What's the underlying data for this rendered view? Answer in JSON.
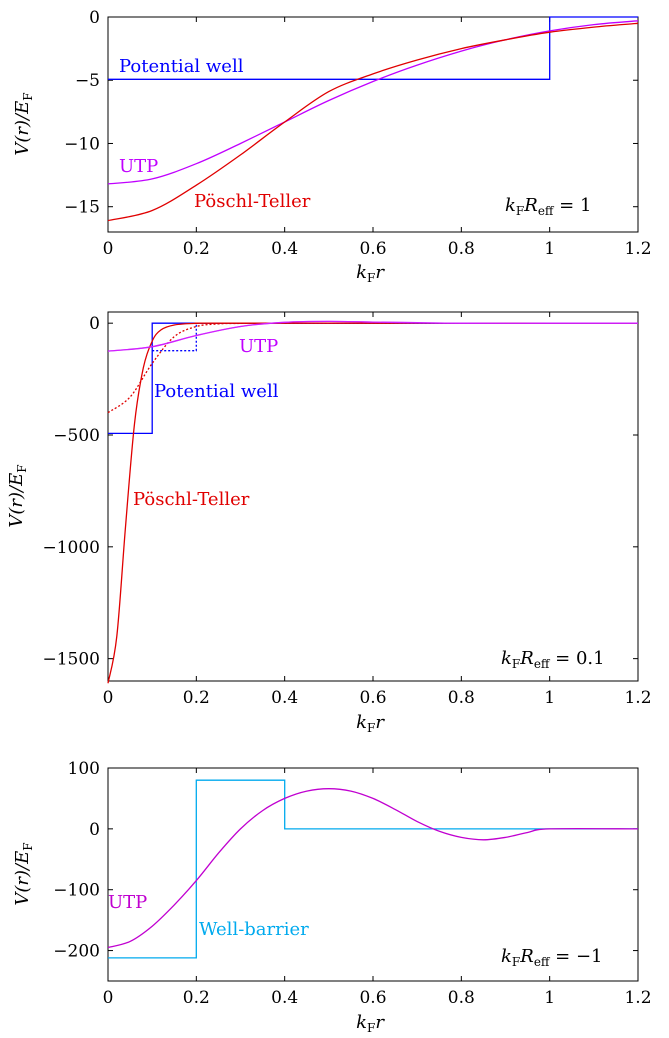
{
  "chart_data": [
    {
      "type": "line",
      "xlabel": "k_F r",
      "ylabel": "V(r)/E_F",
      "xlim": [
        0,
        1.2
      ],
      "ylim": [
        -17,
        0
      ],
      "xticks": [
        0,
        0.2,
        0.4,
        0.6,
        0.8,
        1,
        1.2
      ],
      "xtick_labels": [
        "0",
        "0.2",
        "0.4",
        "0.6",
        "0.8",
        "1",
        "1.2"
      ],
      "yticks": [
        0,
        -5,
        -10,
        -15
      ],
      "ytick_labels": [
        "0",
        "−5",
        "−10",
        "−15"
      ],
      "annotation": "k_F R_eff = 1",
      "series": [
        {
          "name": "Potential well",
          "color": "#0000ff",
          "x": [
            0,
            1,
            1,
            1.2
          ],
          "y": [
            -4.93,
            -4.93,
            0,
            0
          ],
          "step": true
        },
        {
          "name": "UTP",
          "color": "#c000ff",
          "x": [
            0,
            0.1,
            0.2,
            0.3,
            0.4,
            0.5,
            0.6,
            0.7,
            0.8,
            0.9,
            1.0,
            1.1,
            1.2
          ],
          "y": [
            -13.2,
            -12.8,
            -11.6,
            -10.0,
            -8.3,
            -6.6,
            -5.1,
            -3.8,
            -2.7,
            -1.8,
            -1.1,
            -0.6,
            -0.3
          ]
        },
        {
          "name": "Pöschl-Teller",
          "color": "#e00000",
          "x": [
            0,
            0.1,
            0.2,
            0.3,
            0.4,
            0.5,
            0.6,
            0.7,
            0.8,
            0.9,
            1.0,
            1.1,
            1.2
          ],
          "y": [
            -16.1,
            -15.3,
            -13.3,
            -10.9,
            -8.3,
            -5.9,
            -4.5,
            -3.4,
            -2.5,
            -1.8,
            -1.2,
            -0.8,
            -0.5
          ]
        }
      ],
      "labels": {
        "well": "Potential well",
        "utp": "UTP",
        "pt": "Pöschl-Teller"
      }
    },
    {
      "type": "line",
      "xlabel": "k_F r",
      "ylabel": "V(r)/E_F",
      "xlim": [
        0,
        1.2
      ],
      "ylim": [
        -1600,
        50
      ],
      "xticks": [
        0,
        0.2,
        0.4,
        0.6,
        0.8,
        1,
        1.2
      ],
      "xtick_labels": [
        "0",
        "0.2",
        "0.4",
        "0.6",
        "0.8",
        "1",
        "1.2"
      ],
      "yticks": [
        0,
        -500,
        -1000,
        -1500
      ],
      "ytick_labels": [
        "0",
        "−500",
        "−1000",
        "−1500"
      ],
      "annotation": "k_F R_eff = 0.1",
      "series": [
        {
          "name": "Potential well",
          "color": "#0000ff",
          "x": [
            0,
            0.1,
            0.1,
            1.2
          ],
          "y": [
            -493,
            -493,
            0,
            0
          ],
          "step": true
        },
        {
          "name": "Potential well (dotted)",
          "color": "#0000ff",
          "dash": "2,2",
          "x": [
            0.1,
            0.2,
            0.2,
            1.2
          ],
          "y": [
            -123,
            -123,
            0,
            0
          ],
          "step": true
        },
        {
          "name": "Pöschl-Teller",
          "color": "#e00000",
          "x": [
            0,
            0.02,
            0.04,
            0.06,
            0.08,
            0.1,
            0.12,
            0.15,
            0.2,
            0.3,
            1.2
          ],
          "y": [
            -1610,
            -1400,
            -900,
            -450,
            -200,
            -80,
            -30,
            -8,
            -1,
            0,
            0
          ]
        },
        {
          "name": "Pöschl-Teller (dotted)",
          "color": "#e00000",
          "dash": "2,2",
          "x": [
            0,
            0.05,
            0.1,
            0.15,
            0.2,
            0.25,
            0.3,
            0.4
          ],
          "y": [
            -400,
            -330,
            -180,
            -60,
            -15,
            -3,
            -1,
            0
          ]
        },
        {
          "name": "UTP",
          "color": "#d020ff",
          "width": 4,
          "x": [
            0,
            0.1,
            0.2,
            0.3,
            0.4,
            0.5,
            0.6,
            0.7,
            0.8,
            1.0,
            1.2
          ],
          "y": [
            -125,
            -105,
            -55,
            -15,
            4,
            8,
            5,
            2,
            0,
            0,
            0
          ]
        }
      ],
      "labels": {
        "well": "Potential well",
        "utp": "UTP",
        "pt": "Pöschl-Teller"
      }
    },
    {
      "type": "line",
      "xlabel": "k_F r",
      "ylabel": "V(r)/E_F",
      "xlim": [
        0,
        1.2
      ],
      "ylim": [
        -250,
        100
      ],
      "xticks": [
        0,
        0.2,
        0.4,
        0.6,
        0.8,
        1,
        1.2
      ],
      "xtick_labels": [
        "0",
        "0.2",
        "0.4",
        "0.6",
        "0.8",
        "1",
        "1.2"
      ],
      "yticks": [
        100,
        0,
        -100,
        -200
      ],
      "ytick_labels": [
        "100",
        "0",
        "−100",
        "−200"
      ],
      "annotation": "k_F R_eff = −1",
      "series": [
        {
          "name": "Well-barrier",
          "color": "#00aaee",
          "x": [
            0,
            0.2,
            0.2,
            0.4,
            0.4,
            1.2
          ],
          "y": [
            -212,
            -212,
            80,
            80,
            0,
            0
          ],
          "step": true
        },
        {
          "name": "UTP",
          "color": "#c000d0",
          "x": [
            0,
            0.05,
            0.1,
            0.15,
            0.2,
            0.25,
            0.3,
            0.35,
            0.4,
            0.45,
            0.5,
            0.55,
            0.6,
            0.65,
            0.7,
            0.75,
            0.8,
            0.85,
            0.9,
            0.95,
            1.0,
            1.2
          ],
          "y": [
            -195,
            -185,
            -160,
            -125,
            -85,
            -40,
            0,
            30,
            50,
            62,
            66,
            62,
            50,
            32,
            12,
            -4,
            -14,
            -18,
            -14,
            -6,
            0,
            0
          ]
        }
      ],
      "labels": {
        "wb": "Well-barrier",
        "utp": "UTP"
      }
    }
  ]
}
